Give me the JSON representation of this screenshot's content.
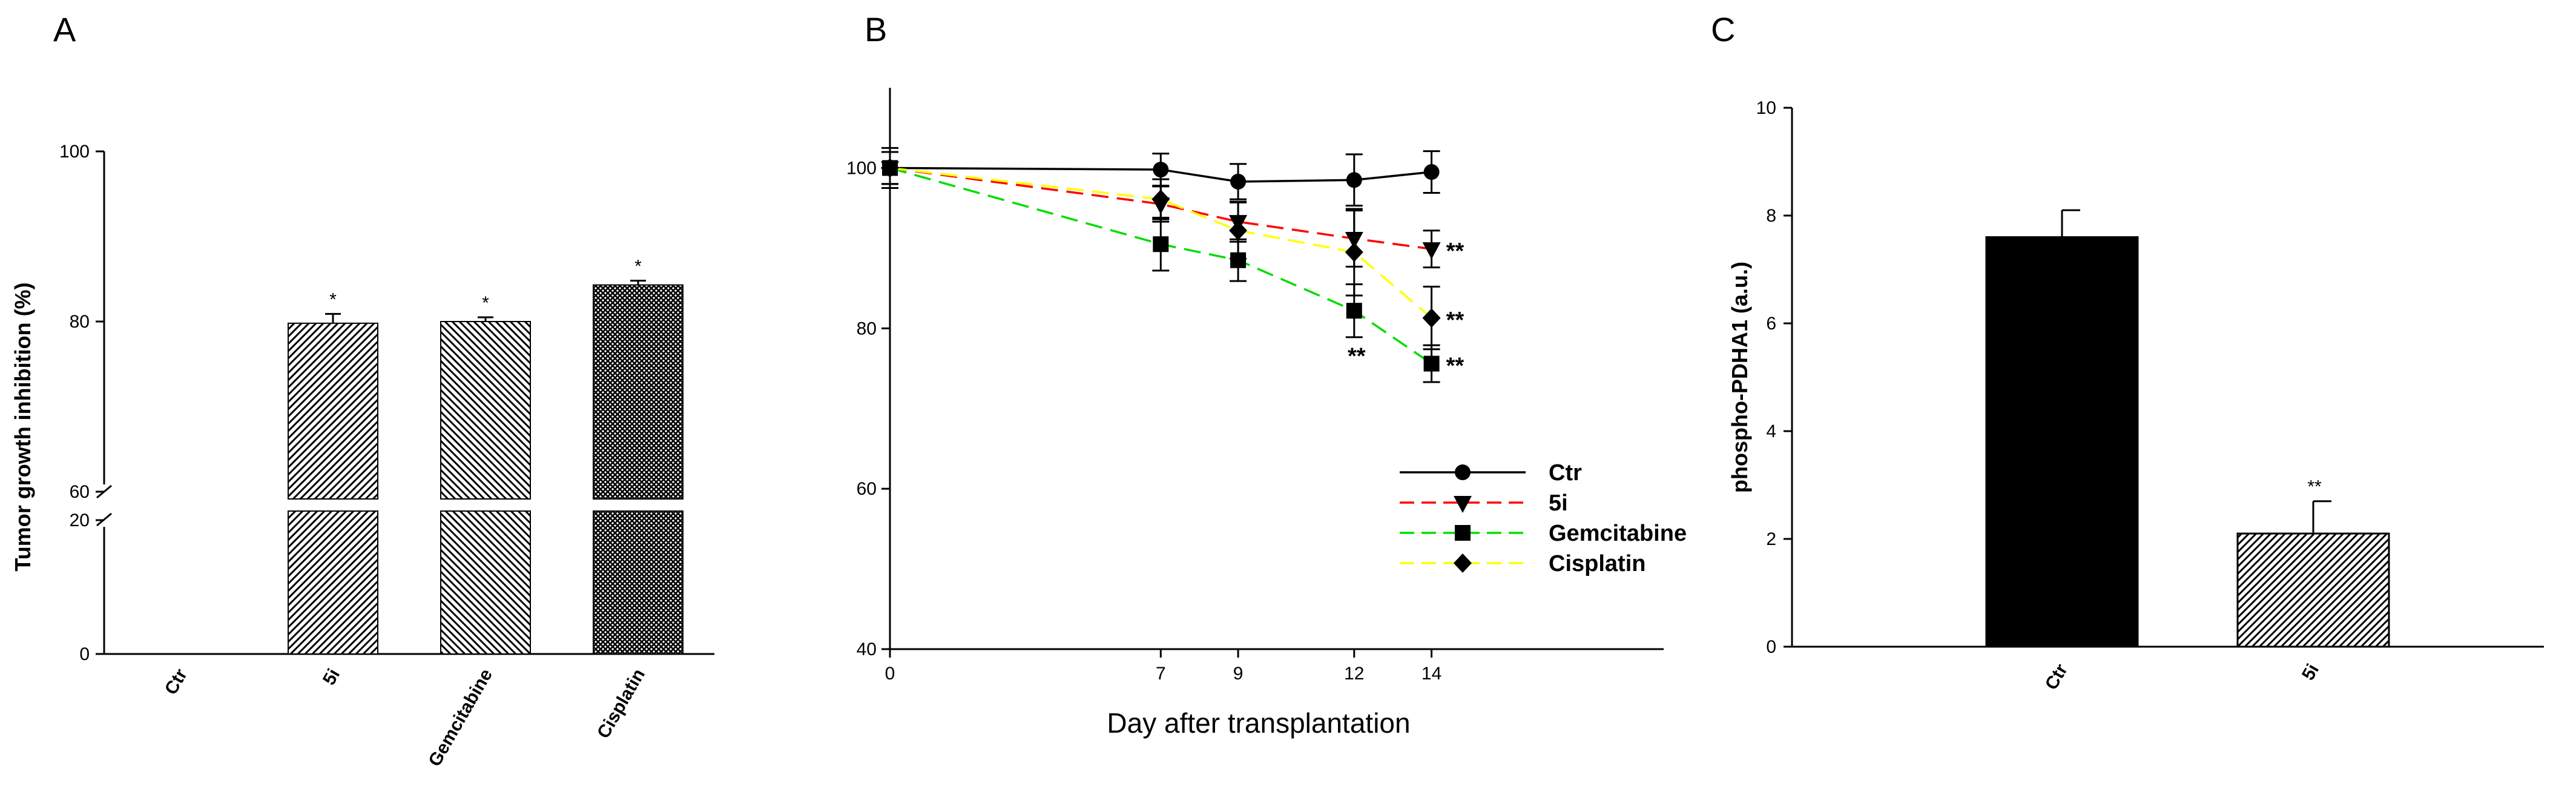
{
  "panels": {
    "A": {
      "letter": "A"
    },
    "B": {
      "letter": "B"
    },
    "C": {
      "letter": "C"
    }
  },
  "chart_data": [
    {
      "panel": "A",
      "type": "bar",
      "categories": [
        "Ctr",
        "5i",
        "Gemcitabine",
        "Cisplatin"
      ],
      "values": [
        0,
        79.8,
        80.0,
        84.3
      ],
      "errors": [
        0,
        1.1,
        0.5,
        0.5
      ],
      "significance": [
        "",
        "*",
        "*",
        "*"
      ],
      "patterns": [
        "none",
        "diag-right",
        "diag-left",
        "crosshatch"
      ],
      "xlabel": "",
      "ylabel": "Tumor growth inhibition (%)",
      "ylim": [
        0,
        100
      ],
      "axis_break": [
        20,
        60
      ],
      "yticks": [
        0,
        20,
        60,
        80,
        100
      ],
      "ytick_labels": [
        "0",
        "20",
        "60",
        "80",
        "100"
      ]
    },
    {
      "panel": "B",
      "type": "line",
      "x": [
        0,
        7,
        9,
        12,
        14
      ],
      "xticks": [
        0,
        7,
        9,
        12,
        14
      ],
      "xlim": [
        0,
        20
      ],
      "ylim": [
        40,
        110
      ],
      "yticks": [
        40,
        60,
        80,
        100
      ],
      "xlabel": "Day after transplantation",
      "ylabel": "",
      "legend_position": "lower-right",
      "series": [
        {
          "name": "Ctr",
          "values": [
            100,
            99.8,
            98.3,
            98.5,
            99.5
          ],
          "errors": [
            2.5,
            2.0,
            2.2,
            3.2,
            2.6
          ],
          "color": "#000000",
          "dash": "solid",
          "marker": "circle"
        },
        {
          "name": "5i",
          "values": [
            100,
            95.5,
            93.3,
            91.2,
            89.9
          ],
          "errors": [
            2.0,
            2.2,
            2.5,
            3.5,
            2.3
          ],
          "color": "#ff0000",
          "dash": "dashed",
          "marker": "triangle-down"
        },
        {
          "name": "Gemcitabine",
          "values": [
            100,
            90.5,
            88.5,
            82.2,
            75.6
          ],
          "errors": [
            2.0,
            3.3,
            2.6,
            3.3,
            2.3
          ],
          "color": "#00dd00",
          "dash": "dashed",
          "marker": "square"
        },
        {
          "name": "Cisplatin",
          "values": [
            100,
            96.1,
            92.2,
            89.5,
            81.3
          ],
          "errors": [
            2.0,
            2.5,
            3.5,
            5.4,
            3.9
          ],
          "color": "#ffff00",
          "dash": "dashed",
          "marker": "diamond"
        }
      ],
      "annotations": [
        {
          "text": "**",
          "x": 14,
          "y": 89.9,
          "series": "5i"
        },
        {
          "text": "**",
          "x": 14,
          "y": 81.3,
          "series": "Cisplatin"
        },
        {
          "text": "**",
          "x": 14,
          "y": 75.6,
          "series": "Gemcitabine"
        },
        {
          "text": "**",
          "x": 12,
          "y": 76.5,
          "series": "Gemcitabine"
        }
      ]
    },
    {
      "panel": "C",
      "type": "bar",
      "categories": [
        "Ctr",
        "5i"
      ],
      "values": [
        7.6,
        2.1
      ],
      "errors": [
        0.5,
        0.6
      ],
      "significance": [
        "",
        "**"
      ],
      "patterns": [
        "solid",
        "diag-right"
      ],
      "xlabel": "",
      "ylabel": "phospho-PDHA1 (a.u.)",
      "ylim": [
        0,
        10
      ],
      "yticks": [
        0,
        2,
        4,
        6,
        8,
        10
      ]
    }
  ]
}
